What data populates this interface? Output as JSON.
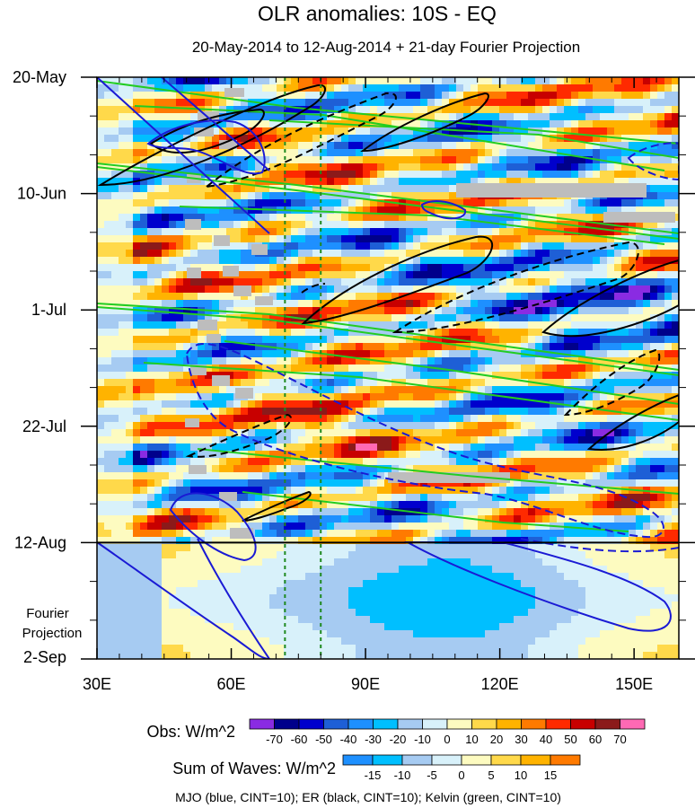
{
  "title": "OLR anomalies: 10S - EQ",
  "subtitle": "20-May-2014 to 12-Aug-2014 + 21-day Fourier Projection",
  "chart_data": {
    "type": "heatmap",
    "x_ticks": [
      {
        "value": 30,
        "label": "30E"
      },
      {
        "value": 60,
        "label": "60E"
      },
      {
        "value": 90,
        "label": "90E"
      },
      {
        "value": 120,
        "label": "120E"
      },
      {
        "value": 150,
        "label": "150E"
      }
    ],
    "xlim": [
      30,
      160
    ],
    "y_ticks": [
      {
        "value": 0,
        "label": "20-May"
      },
      {
        "value": 21,
        "label": "10-Jun"
      },
      {
        "value": 42,
        "label": "1-Jul"
      },
      {
        "value": 63,
        "label": "22-Jul"
      },
      {
        "value": 84,
        "label": "12-Aug"
      },
      {
        "value": 105,
        "label": "2-Sep"
      }
    ],
    "ylim_days": [
      0,
      105
    ],
    "projection_label_lines": [
      "Fourier",
      "Projection"
    ],
    "reference_lines": {
      "observation_end_day": 84,
      "dashed_green_longitudes": [
        72,
        80
      ]
    },
    "obs_colorbar": {
      "label": "Obs: W/m^2",
      "levels": [
        "-70",
        "-60",
        "-50",
        "-40",
        "-30",
        "-20",
        "-10",
        "0",
        "10",
        "20",
        "30",
        "40",
        "50",
        "60",
        "70"
      ],
      "colors": [
        "#8a2be2",
        "#00008b",
        "#0000cd",
        "#1e5fd6",
        "#1e90ff",
        "#00bfff",
        "#a6cbf2",
        "#d8f1fa",
        "#fdfbc0",
        "#ffd94a",
        "#ffb300",
        "#ff7a00",
        "#ff2a00",
        "#c80000",
        "#8b1a1a",
        "#ff69b4"
      ]
    },
    "waves_colorbar": {
      "label": "Sum of Waves: W/m^2",
      "levels": [
        "-15",
        "-10",
        "-5",
        "0",
        "5",
        "10",
        "15"
      ],
      "colors": [
        "#1e90ff",
        "#00bfff",
        "#a6cbf2",
        "#d8f1fa",
        "#fdfbc0",
        "#ffd94a",
        "#ffb300",
        "#ff7a00"
      ]
    },
    "legend_note": "MJO (blue, CINT=10); ER (black, CINT=10); Kelvin (green, CINT=10)",
    "colors": {
      "mjo": "#1a1ad4",
      "er": "#000000",
      "kelvin": "#22cc22",
      "missing": "#bdbdbd"
    }
  }
}
